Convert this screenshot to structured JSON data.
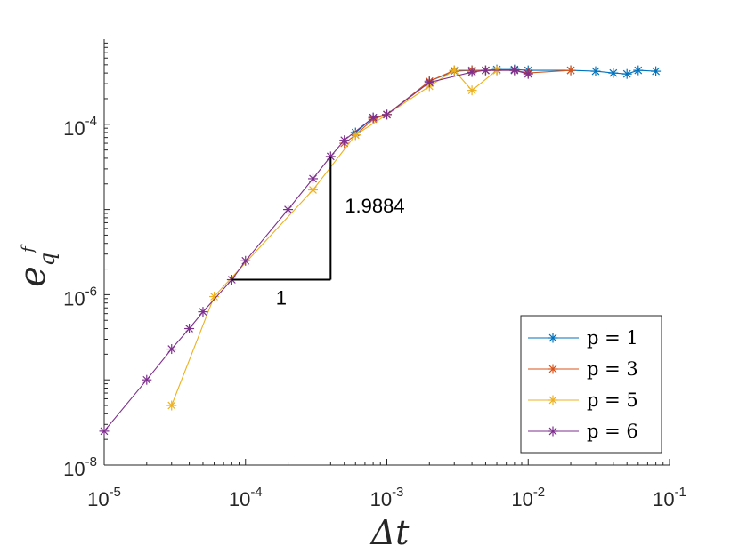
{
  "chart_data": {
    "type": "line",
    "xscale": "log",
    "yscale": "log",
    "xlim": [
      1e-05,
      0.1
    ],
    "ylim": [
      1e-08,
      0.001
    ],
    "xlabel": "Δt",
    "ylabel": {
      "base": "e",
      "sub": "q",
      "sup": "f"
    },
    "x_ticks": [
      {
        "value": 1e-05,
        "base": "10",
        "exp": "-5"
      },
      {
        "value": 0.0001,
        "base": "10",
        "exp": "-4"
      },
      {
        "value": 0.001,
        "base": "10",
        "exp": "-3"
      },
      {
        "value": 0.01,
        "base": "10",
        "exp": "-2"
      },
      {
        "value": 0.1,
        "base": "10",
        "exp": "-1"
      }
    ],
    "y_ticks": [
      {
        "value": 1e-08,
        "base": "10",
        "exp": "-8"
      },
      {
        "value": 1e-06,
        "base": "10",
        "exp": "-6"
      },
      {
        "value": 0.0001,
        "base": "10",
        "exp": "-4"
      }
    ],
    "slope_triangle": {
      "x_start": 8e-05,
      "x_end": 0.0004,
      "y_start": 1.5e-06,
      "y_end": 4.2e-05,
      "run_label": "1",
      "rise_label": "1.9884"
    },
    "legend": {
      "placement": "bottom-right",
      "entries": [
        "p = 1",
        "p = 3",
        "p = 5",
        "p = 6"
      ]
    },
    "series": [
      {
        "name": "p = 1",
        "color": "#0072BD",
        "points": [
          [
            0.0006,
            8e-05
          ],
          [
            0.0008,
            0.00012
          ],
          [
            0.001,
            0.00013
          ],
          [
            0.002,
            0.00032
          ],
          [
            0.003,
            0.00042
          ],
          [
            0.004,
            0.00043
          ],
          [
            0.005,
            0.00043
          ],
          [
            0.006,
            0.00044
          ],
          [
            0.008,
            0.00044
          ],
          [
            0.01,
            0.00043
          ],
          [
            0.02,
            0.00043
          ],
          [
            0.03,
            0.00042
          ],
          [
            0.04,
            0.0004
          ],
          [
            0.05,
            0.00039
          ],
          [
            0.06,
            0.00043
          ],
          [
            0.08,
            0.00042
          ]
        ]
      },
      {
        "name": "p = 3",
        "color": "#D95319",
        "points": [
          [
            0.0005,
            6e-05
          ],
          [
            0.0006,
            7.5e-05
          ],
          [
            0.0008,
            0.000115
          ],
          [
            0.001,
            0.00013
          ],
          [
            0.002,
            0.00032
          ],
          [
            0.003,
            0.00043
          ],
          [
            0.004,
            0.00043
          ],
          [
            0.005,
            0.00043
          ],
          [
            0.006,
            0.00043
          ],
          [
            0.008,
            0.00043
          ],
          [
            0.01,
            0.0004
          ],
          [
            0.02,
            0.00043
          ]
        ]
      },
      {
        "name": "p = 5",
        "color": "#EDB120",
        "points": [
          [
            3e-05,
            5e-08
          ],
          [
            6e-05,
            9.5e-07
          ],
          [
            0.0003,
            1.7e-05
          ],
          [
            0.0006,
            7.5e-05
          ],
          [
            0.001,
            0.00013
          ],
          [
            0.002,
            0.00028
          ],
          [
            0.003,
            0.00043
          ],
          [
            0.004,
            0.00025
          ],
          [
            0.006,
            0.00043
          ]
        ]
      },
      {
        "name": "p = 6",
        "color": "#7E2F8E",
        "points": [
          [
            1e-05,
            2.5e-08
          ],
          [
            2e-05,
            1e-07
          ],
          [
            3e-05,
            2.3e-07
          ],
          [
            4e-05,
            4e-07
          ],
          [
            5e-05,
            6.3e-07
          ],
          [
            8e-05,
            1.5e-06
          ],
          [
            0.0001,
            2.5e-06
          ],
          [
            0.0002,
            1e-05
          ],
          [
            0.0003,
            2.3e-05
          ],
          [
            0.0004,
            4.2e-05
          ],
          [
            0.0005,
            6.5e-05
          ],
          [
            0.0008,
            0.00012
          ],
          [
            0.001,
            0.00013
          ],
          [
            0.002,
            0.00031
          ],
          [
            0.004,
            0.00041
          ],
          [
            0.005,
            0.00043
          ],
          [
            0.008,
            0.00043
          ],
          [
            0.01,
            0.00039
          ]
        ]
      }
    ]
  }
}
